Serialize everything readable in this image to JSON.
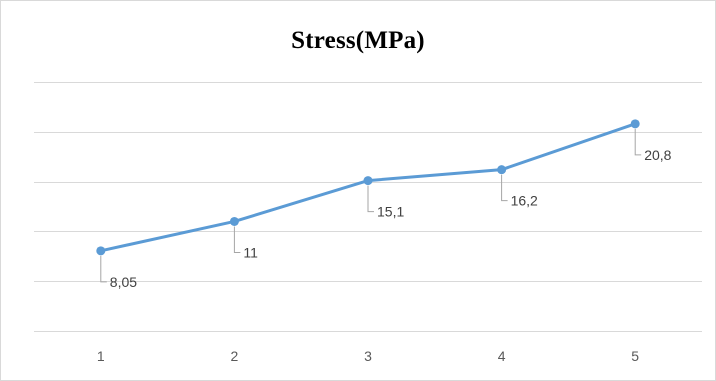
{
  "chart_data": {
    "type": "line",
    "title": "Stress(MPa)",
    "categories": [
      "1",
      "2",
      "3",
      "4",
      "5"
    ],
    "series": [
      {
        "values": [
          8.05,
          11,
          15.1,
          16.2,
          20.8
        ],
        "data_labels": [
          "8,05",
          "11",
          "15,1",
          "16,2",
          "20,8"
        ],
        "color": "#5b9bd5"
      }
    ],
    "ylim": [
      0,
      25
    ],
    "y_gridlines": [
      0,
      5,
      10,
      15,
      20,
      25
    ],
    "y_tick_labels_visible": false,
    "grid": true,
    "legend": "none",
    "gridline_color": "#d9d9d9",
    "tick_label_color": "#595959",
    "leader_line_color": "#a6a6a6"
  }
}
